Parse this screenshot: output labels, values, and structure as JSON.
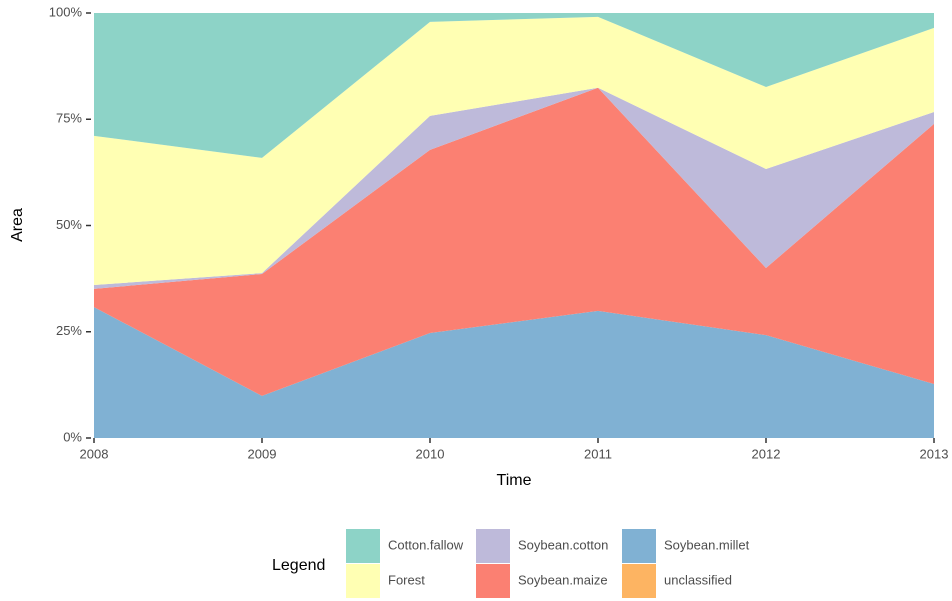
{
  "chart_data": {
    "type": "area",
    "x_label": "Time",
    "y_label": "Area",
    "legend_title": "Legend",
    "x": [
      2008,
      2009,
      2010,
      2011,
      2012,
      2013
    ],
    "xlim": [
      2008,
      2013
    ],
    "xticks": [
      2008,
      2009,
      2010,
      2011,
      2012,
      2013
    ],
    "ylim": [
      0,
      100
    ],
    "yticks": [
      {
        "value": 0,
        "label": "0%"
      },
      {
        "value": 25,
        "label": "25%"
      },
      {
        "value": 50,
        "label": "50%"
      },
      {
        "value": 75,
        "label": "75%"
      },
      {
        "value": 100,
        "label": "100%"
      }
    ],
    "stacked": true,
    "series": [
      {
        "name": "Cotton.fallow",
        "color": "#8dd3c7",
        "values": [
          28.9,
          34.1,
          2.1,
          0.9,
          17.4,
          3.5
        ]
      },
      {
        "name": "Forest",
        "color": "#ffffb3",
        "values": [
          35.1,
          27.1,
          22.1,
          16.7,
          19.3,
          19.8
        ]
      },
      {
        "name": "Soybean.cotton",
        "color": "#bebada",
        "values": [
          0.9,
          0.2,
          8.0,
          0,
          23.3,
          2.8
        ]
      },
      {
        "name": "Soybean.maize",
        "color": "#fb8072",
        "values": [
          4.3,
          28.7,
          43.1,
          52.5,
          15.8,
          61.2
        ]
      },
      {
        "name": "Soybean.millet",
        "color": "#80b1d3",
        "values": [
          30.8,
          9.9,
          24.7,
          29.9,
          24.2,
          12.7
        ]
      },
      {
        "name": "unclassified",
        "color": "#fdb462",
        "values": [
          0,
          0,
          0,
          0,
          0,
          0
        ]
      }
    ]
  }
}
